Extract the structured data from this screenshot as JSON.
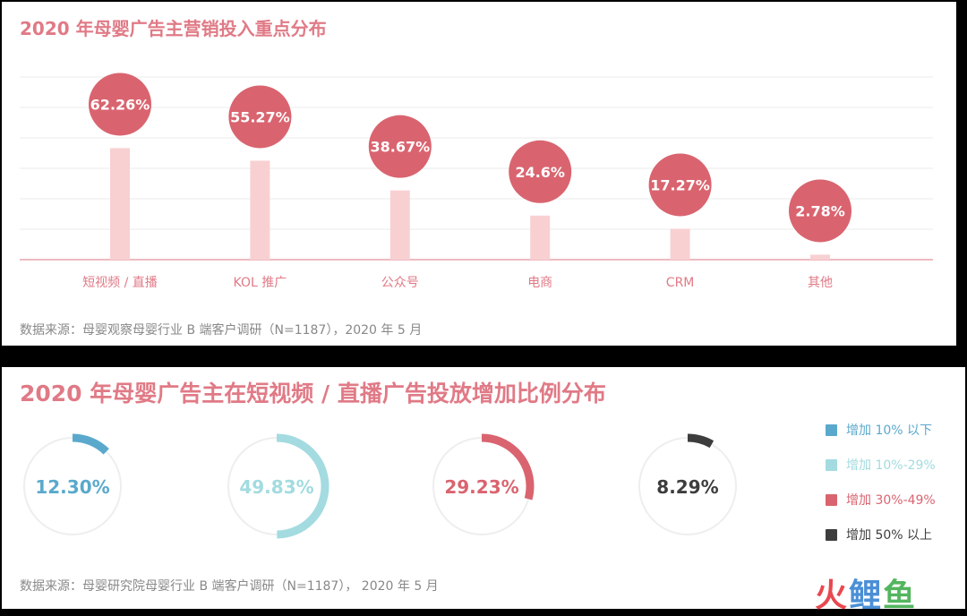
{
  "chart_data": [
    {
      "type": "bar",
      "title": "2020 年母婴广告主营销投入重点分布",
      "categories": [
        "短视频 / 直播",
        "KOL 推广",
        "公众号",
        "电商",
        "CRM",
        "其他"
      ],
      "values": [
        62.26,
        55.27,
        38.67,
        24.6,
        17.27,
        2.78
      ],
      "value_labels": [
        "62.26%",
        "55.27%",
        "38.67%",
        "24.6%",
        "17.27%",
        "2.78%"
      ],
      "ylim": [
        0,
        100
      ],
      "grid": true,
      "colors": {
        "bar": "#f8d0d2",
        "bubble": "#d9646f",
        "axis": "#e8a3ab",
        "label": "#e07a86"
      }
    },
    {
      "type": "pie",
      "title": "2020 年母婴广告主在短视频 / 直播广告投放增加比例分布",
      "series": [
        {
          "name": "增加 10% 以下",
          "value": 12.3,
          "label": "12.30%",
          "color": "#5aa9cc"
        },
        {
          "name": "增加 10%-29%",
          "value": 49.83,
          "label": "49.83%",
          "color": "#a3dbe0"
        },
        {
          "name": "增加 30%-49%",
          "value": 29.23,
          "label": "29.23%",
          "color": "#d9646f"
        },
        {
          "name": "增加 50% 以上",
          "value": 8.29,
          "label": "8.29%",
          "color": "#3d3d3d"
        }
      ],
      "legend_position": "right"
    }
  ],
  "sources": {
    "top": "数据来源：母婴观察母婴行业 B 端客户调研（N=1187），2020 年 5 月",
    "bottom": "数据来源：母婴研究院母婴行业 B 端客户调研（N=1187）， 2020 年 5 月"
  },
  "watermark": {
    "part1": "火",
    "part2": "鲤",
    "part3": "鱼"
  }
}
